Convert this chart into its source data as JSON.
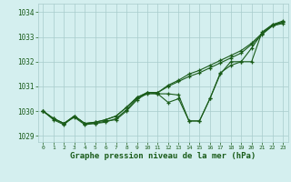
{
  "x": [
    0,
    1,
    2,
    3,
    4,
    5,
    6,
    7,
    8,
    9,
    10,
    11,
    12,
    13,
    14,
    15,
    16,
    17,
    18,
    19,
    20,
    21,
    22,
    23
  ],
  "line_wavy": [
    1030.0,
    1029.7,
    1029.5,
    1029.75,
    1029.45,
    1029.5,
    1029.55,
    1029.7,
    1030.05,
    1030.5,
    1030.7,
    1030.7,
    1030.35,
    1030.5,
    1029.6,
    1029.6,
    1030.5,
    1031.55,
    1031.85,
    1032.0,
    1032.55,
    1033.15,
    1033.45,
    1033.55
  ],
  "line_dip": [
    1030.0,
    1029.65,
    1029.45,
    1029.8,
    1029.5,
    1029.5,
    1029.6,
    1029.65,
    1030.0,
    1030.45,
    1030.75,
    1030.7,
    1030.7,
    1030.65,
    1029.6,
    1029.6,
    1030.5,
    1031.5,
    1032.0,
    1032.0,
    1032.0,
    1033.2,
    1033.5,
    1033.6
  ],
  "line_straight1": [
    1030.0,
    1029.7,
    1029.5,
    1029.8,
    1029.5,
    1029.55,
    1029.65,
    1029.8,
    1030.15,
    1030.55,
    1030.75,
    1030.75,
    1031.0,
    1031.2,
    1031.4,
    1031.55,
    1031.75,
    1031.95,
    1032.15,
    1032.35,
    1032.7,
    1033.1,
    1033.45,
    1033.6
  ],
  "line_straight2": [
    1030.0,
    1029.7,
    1029.5,
    1029.8,
    1029.5,
    1029.55,
    1029.65,
    1029.8,
    1030.15,
    1030.55,
    1030.75,
    1030.75,
    1031.05,
    1031.25,
    1031.5,
    1031.65,
    1031.85,
    1032.05,
    1032.25,
    1032.45,
    1032.75,
    1033.15,
    1033.5,
    1033.65
  ],
  "bg_color": "#d4efef",
  "line_color": "#1a5c1a",
  "grid_color": "#a8cccc",
  "text_color": "#1a5c1a",
  "xlabel": "Graphe pression niveau de la mer (hPa)",
  "ylim": [
    1028.75,
    1034.35
  ],
  "xlim": [
    -0.5,
    23.5
  ],
  "yticks": [
    1029,
    1030,
    1031,
    1032,
    1033,
    1034
  ],
  "xticks": [
    0,
    1,
    2,
    3,
    4,
    5,
    6,
    7,
    8,
    9,
    10,
    11,
    12,
    13,
    14,
    15,
    16,
    17,
    18,
    19,
    20,
    21,
    22,
    23
  ]
}
